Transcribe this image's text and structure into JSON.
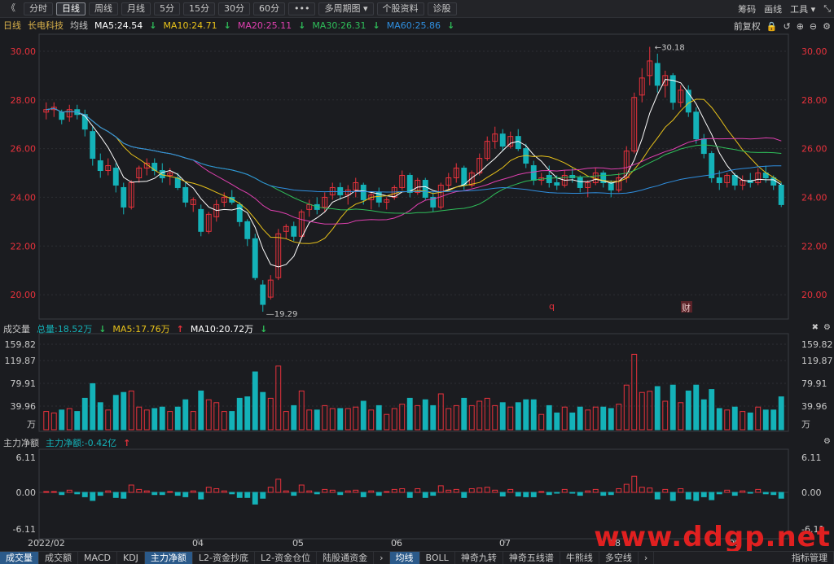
{
  "toolbar": {
    "back": "《",
    "items": [
      "分时",
      "日线",
      "周线",
      "月线",
      "5分",
      "15分",
      "30分",
      "60分",
      "•••",
      "多周期图 ▾",
      "个股资料",
      "诊股"
    ],
    "right": [
      "筹码",
      "画线",
      "工具 ▾",
      "⤡"
    ]
  },
  "ma_bar": {
    "period": "日线",
    "name": "长电科技",
    "avg": "均线",
    "ma5": "MA5:24.54",
    "ma10": "MA10:24.71",
    "ma20": "MA20:25.11",
    "ma30": "MA30:26.31",
    "ma60": "MA60:25.86",
    "restore": "前复权"
  },
  "vol_bar": {
    "title": "成交量",
    "total": "总量:18.52万",
    "ma5": "MA5:17.76万",
    "ma10": "MA10:20.72万"
  },
  "flow_bar": {
    "title": "主力净额",
    "value": "主力净额:-0.42亿"
  },
  "price_axis": [
    "30.00",
    "28.00",
    "26.00",
    "24.00",
    "22.00",
    "20.00"
  ],
  "vol_axis": [
    "159.82",
    "119.87",
    "79.91",
    "39.96",
    "万"
  ],
  "flow_axis": [
    "6.11",
    "0.00",
    "-6.11"
  ],
  "date_axis": [
    "2022/02",
    "04",
    "05",
    "06",
    "07",
    "08",
    "09"
  ],
  "annotations": {
    "high": "30.18",
    "low": "19.29",
    "event1": "q",
    "event2": "财"
  },
  "bottom_tabs": [
    "成交量",
    "成交额",
    "MACD",
    "KDJ",
    "主力净额",
    "L2-资金抄底",
    "L2-资金仓位",
    "陆股通资金",
    "›",
    "均线",
    "BOLL",
    "神奇九转",
    "神奇五线谱",
    "牛熊线",
    "多空线",
    "›",
    "指标管理"
  ],
  "watermark": "www.ddgp.net",
  "colors": {
    "up": "#e8323c",
    "down": "#14b2b8",
    "ma5": "#ffffff",
    "ma10": "#e8c21a",
    "ma20": "#e040b0",
    "ma30": "#2fbf5a",
    "ma60": "#2f8fe0"
  },
  "chart_data": {
    "type": "candlestick",
    "ylim": [
      19,
      30.7
    ],
    "points": [
      [
        27.5,
        27.9,
        27.2,
        27.6
      ],
      [
        27.6,
        27.9,
        27.3,
        27.7
      ],
      [
        27.5,
        27.6,
        27.0,
        27.2
      ],
      [
        27.3,
        27.8,
        27.1,
        27.6
      ],
      [
        27.6,
        27.8,
        27.2,
        27.4
      ],
      [
        27.4,
        27.6,
        26.5,
        26.8
      ],
      [
        26.7,
        26.9,
        25.3,
        25.6
      ],
      [
        25.5,
        25.8,
        24.8,
        25.1
      ],
      [
        25.1,
        25.6,
        24.9,
        25.3
      ],
      [
        25.2,
        25.4,
        24.2,
        24.5
      ],
      [
        24.4,
        24.6,
        23.3,
        23.6
      ],
      [
        23.6,
        24.7,
        23.5,
        24.6
      ],
      [
        24.8,
        25.3,
        24.6,
        25.2
      ],
      [
        25.2,
        25.6,
        24.9,
        25.4
      ],
      [
        25.4,
        25.6,
        24.9,
        25.1
      ],
      [
        25.1,
        25.4,
        24.6,
        24.8
      ],
      [
        24.9,
        25.2,
        24.5,
        25.0
      ],
      [
        24.8,
        25.0,
        24.3,
        24.4
      ],
      [
        24.4,
        24.6,
        23.6,
        23.8
      ],
      [
        23.7,
        24.0,
        23.4,
        23.9
      ],
      [
        23.5,
        23.7,
        22.4,
        22.6
      ],
      [
        22.6,
        23.4,
        22.5,
        23.3
      ],
      [
        23.2,
        23.9,
        23.0,
        23.7
      ],
      [
        23.8,
        24.2,
        23.6,
        24.0
      ],
      [
        24.0,
        24.3,
        23.7,
        23.8
      ],
      [
        23.7,
        23.8,
        22.8,
        23.0
      ],
      [
        23.0,
        23.1,
        22.0,
        22.3
      ],
      [
        22.3,
        22.5,
        20.6,
        20.7
      ],
      [
        20.4,
        20.6,
        19.3,
        19.6
      ],
      [
        19.9,
        20.8,
        19.8,
        20.6
      ],
      [
        20.7,
        22.7,
        20.6,
        22.5
      ],
      [
        22.6,
        22.9,
        22.3,
        22.8
      ],
      [
        22.8,
        23.0,
        22.2,
        22.4
      ],
      [
        22.4,
        23.5,
        22.3,
        23.4
      ],
      [
        23.5,
        23.9,
        23.2,
        23.7
      ],
      [
        23.7,
        24.0,
        23.3,
        23.5
      ],
      [
        23.6,
        24.2,
        23.4,
        24.0
      ],
      [
        24.1,
        24.6,
        23.9,
        24.4
      ],
      [
        24.4,
        24.6,
        23.9,
        24.1
      ],
      [
        24.1,
        24.5,
        23.7,
        24.3
      ],
      [
        24.3,
        24.8,
        24.0,
        24.6
      ],
      [
        24.5,
        24.6,
        23.7,
        23.9
      ],
      [
        23.9,
        24.2,
        23.5,
        24.1
      ],
      [
        24.2,
        24.4,
        23.6,
        23.8
      ],
      [
        23.8,
        24.0,
        23.5,
        23.9
      ],
      [
        24.0,
        24.5,
        23.9,
        24.4
      ],
      [
        24.4,
        25.1,
        24.3,
        24.9
      ],
      [
        24.9,
        25.0,
        24.0,
        24.2
      ],
      [
        24.2,
        24.8,
        24.1,
        24.7
      ],
      [
        24.7,
        24.8,
        23.9,
        24.0
      ],
      [
        24.0,
        24.2,
        23.4,
        23.6
      ],
      [
        23.6,
        24.6,
        23.5,
        24.5
      ],
      [
        24.5,
        25.0,
        24.3,
        24.8
      ],
      [
        24.8,
        25.4,
        24.6,
        25.2
      ],
      [
        25.2,
        25.3,
        24.3,
        24.5
      ],
      [
        24.5,
        25.1,
        24.4,
        25.0
      ],
      [
        25.0,
        25.8,
        24.9,
        25.6
      ],
      [
        25.6,
        26.5,
        25.5,
        26.3
      ],
      [
        26.3,
        26.9,
        26.0,
        26.6
      ],
      [
        26.6,
        26.8,
        25.9,
        26.1
      ],
      [
        26.1,
        26.7,
        26.0,
        26.5
      ],
      [
        26.5,
        26.8,
        25.9,
        26.0
      ],
      [
        26.0,
        26.2,
        25.2,
        25.4
      ],
      [
        25.3,
        25.5,
        24.5,
        24.7
      ],
      [
        24.7,
        25.0,
        24.5,
        24.8
      ],
      [
        24.9,
        25.3,
        24.4,
        24.6
      ],
      [
        24.6,
        24.9,
        24.3,
        24.5
      ],
      [
        24.5,
        25.1,
        24.4,
        24.9
      ],
      [
        24.9,
        25.2,
        24.6,
        24.8
      ],
      [
        24.8,
        24.9,
        24.2,
        24.4
      ],
      [
        24.4,
        24.7,
        24.0,
        24.6
      ],
      [
        24.6,
        25.2,
        24.5,
        25.0
      ],
      [
        25.0,
        25.1,
        24.4,
        24.6
      ],
      [
        24.6,
        24.7,
        24.0,
        24.3
      ],
      [
        24.3,
        25.0,
        24.2,
        24.8
      ],
      [
        24.8,
        26.1,
        24.6,
        25.9
      ],
      [
        25.9,
        28.3,
        25.8,
        28.1
      ],
      [
        28.2,
        29.3,
        27.9,
        28.9
      ],
      [
        29.0,
        30.18,
        28.6,
        29.6
      ],
      [
        29.5,
        29.9,
        28.3,
        28.6
      ],
      [
        28.6,
        29.2,
        28.1,
        29.0
      ],
      [
        29.0,
        29.1,
        27.6,
        27.9
      ],
      [
        27.9,
        28.6,
        27.7,
        28.4
      ],
      [
        28.4,
        28.6,
        27.3,
        27.5
      ],
      [
        27.5,
        27.7,
        26.2,
        26.4
      ],
      [
        26.4,
        26.6,
        25.6,
        25.8
      ],
      [
        25.8,
        25.9,
        24.6,
        24.8
      ],
      [
        24.8,
        25.1,
        24.3,
        24.6
      ],
      [
        24.6,
        25.0,
        24.4,
        24.9
      ],
      [
        24.9,
        25.0,
        24.3,
        24.5
      ],
      [
        24.5,
        24.9,
        24.3,
        24.7
      ],
      [
        24.7,
        25.0,
        24.4,
        24.6
      ],
      [
        24.6,
        25.2,
        24.5,
        25.0
      ],
      [
        25.0,
        25.3,
        24.6,
        24.8
      ],
      [
        24.8,
        24.9,
        24.3,
        24.5
      ],
      [
        24.5,
        24.6,
        23.6,
        23.7
      ]
    ]
  }
}
